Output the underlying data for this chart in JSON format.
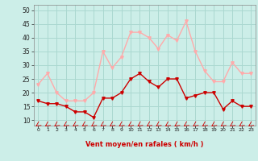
{
  "x": [
    0,
    1,
    2,
    3,
    4,
    5,
    6,
    7,
    8,
    9,
    10,
    11,
    12,
    13,
    14,
    15,
    16,
    17,
    18,
    19,
    20,
    21,
    22,
    23
  ],
  "vent_moyen": [
    17,
    16,
    16,
    15,
    13,
    13,
    11,
    18,
    18,
    20,
    25,
    27,
    24,
    22,
    25,
    25,
    18,
    19,
    20,
    20,
    14,
    17,
    15,
    15
  ],
  "en_rafales": [
    23,
    27,
    20,
    17,
    17,
    17,
    20,
    35,
    29,
    33,
    42,
    42,
    40,
    36,
    41,
    39,
    46,
    35,
    28,
    24,
    24,
    31,
    27,
    27
  ],
  "line_moyen_color": "#cc0000",
  "line_rafales_color": "#ffaaaa",
  "bg_color": "#cceee8",
  "grid_color": "#aad8d0",
  "xlabel": "Vent moyen/en rafales ( km/h )",
  "xlabel_color": "#cc0000",
  "yticks": [
    10,
    15,
    20,
    25,
    30,
    35,
    40,
    45,
    50
  ],
  "ylim": [
    8,
    52
  ],
  "xlim": [
    -0.5,
    23.5
  ],
  "arrow_color": "#cc0000"
}
